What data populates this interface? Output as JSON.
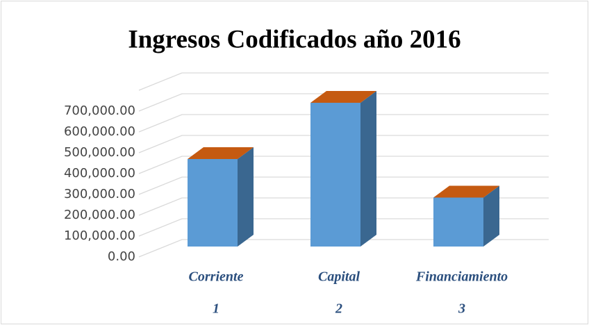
{
  "chart_data": {
    "type": "bar3d",
    "title": "Ingresos Codificados año 2016",
    "categories": [
      "Corriente",
      "Capital",
      "Financiamiento"
    ],
    "category_numbers": [
      "1",
      "2",
      "3"
    ],
    "values": [
      420000,
      690000,
      235000
    ],
    "colors": {
      "front": "#5b9bd5",
      "side": "#3a6790",
      "top": "#c55a11"
    },
    "ylim": [
      0,
      800000
    ],
    "yticks": [
      {
        "value": 0,
        "label": "0.00"
      },
      {
        "value": 100000,
        "label": "100,000.00"
      },
      {
        "value": 200000,
        "label": "200,000.00"
      },
      {
        "value": 300000,
        "label": "300,000.00"
      },
      {
        "value": 400000,
        "label": "400,000.00"
      },
      {
        "value": 500000,
        "label": "500,000.00"
      },
      {
        "value": 600000,
        "label": "600,000.00"
      },
      {
        "value": 700000,
        "label": "700,000.00"
      }
    ],
    "grid": true
  }
}
